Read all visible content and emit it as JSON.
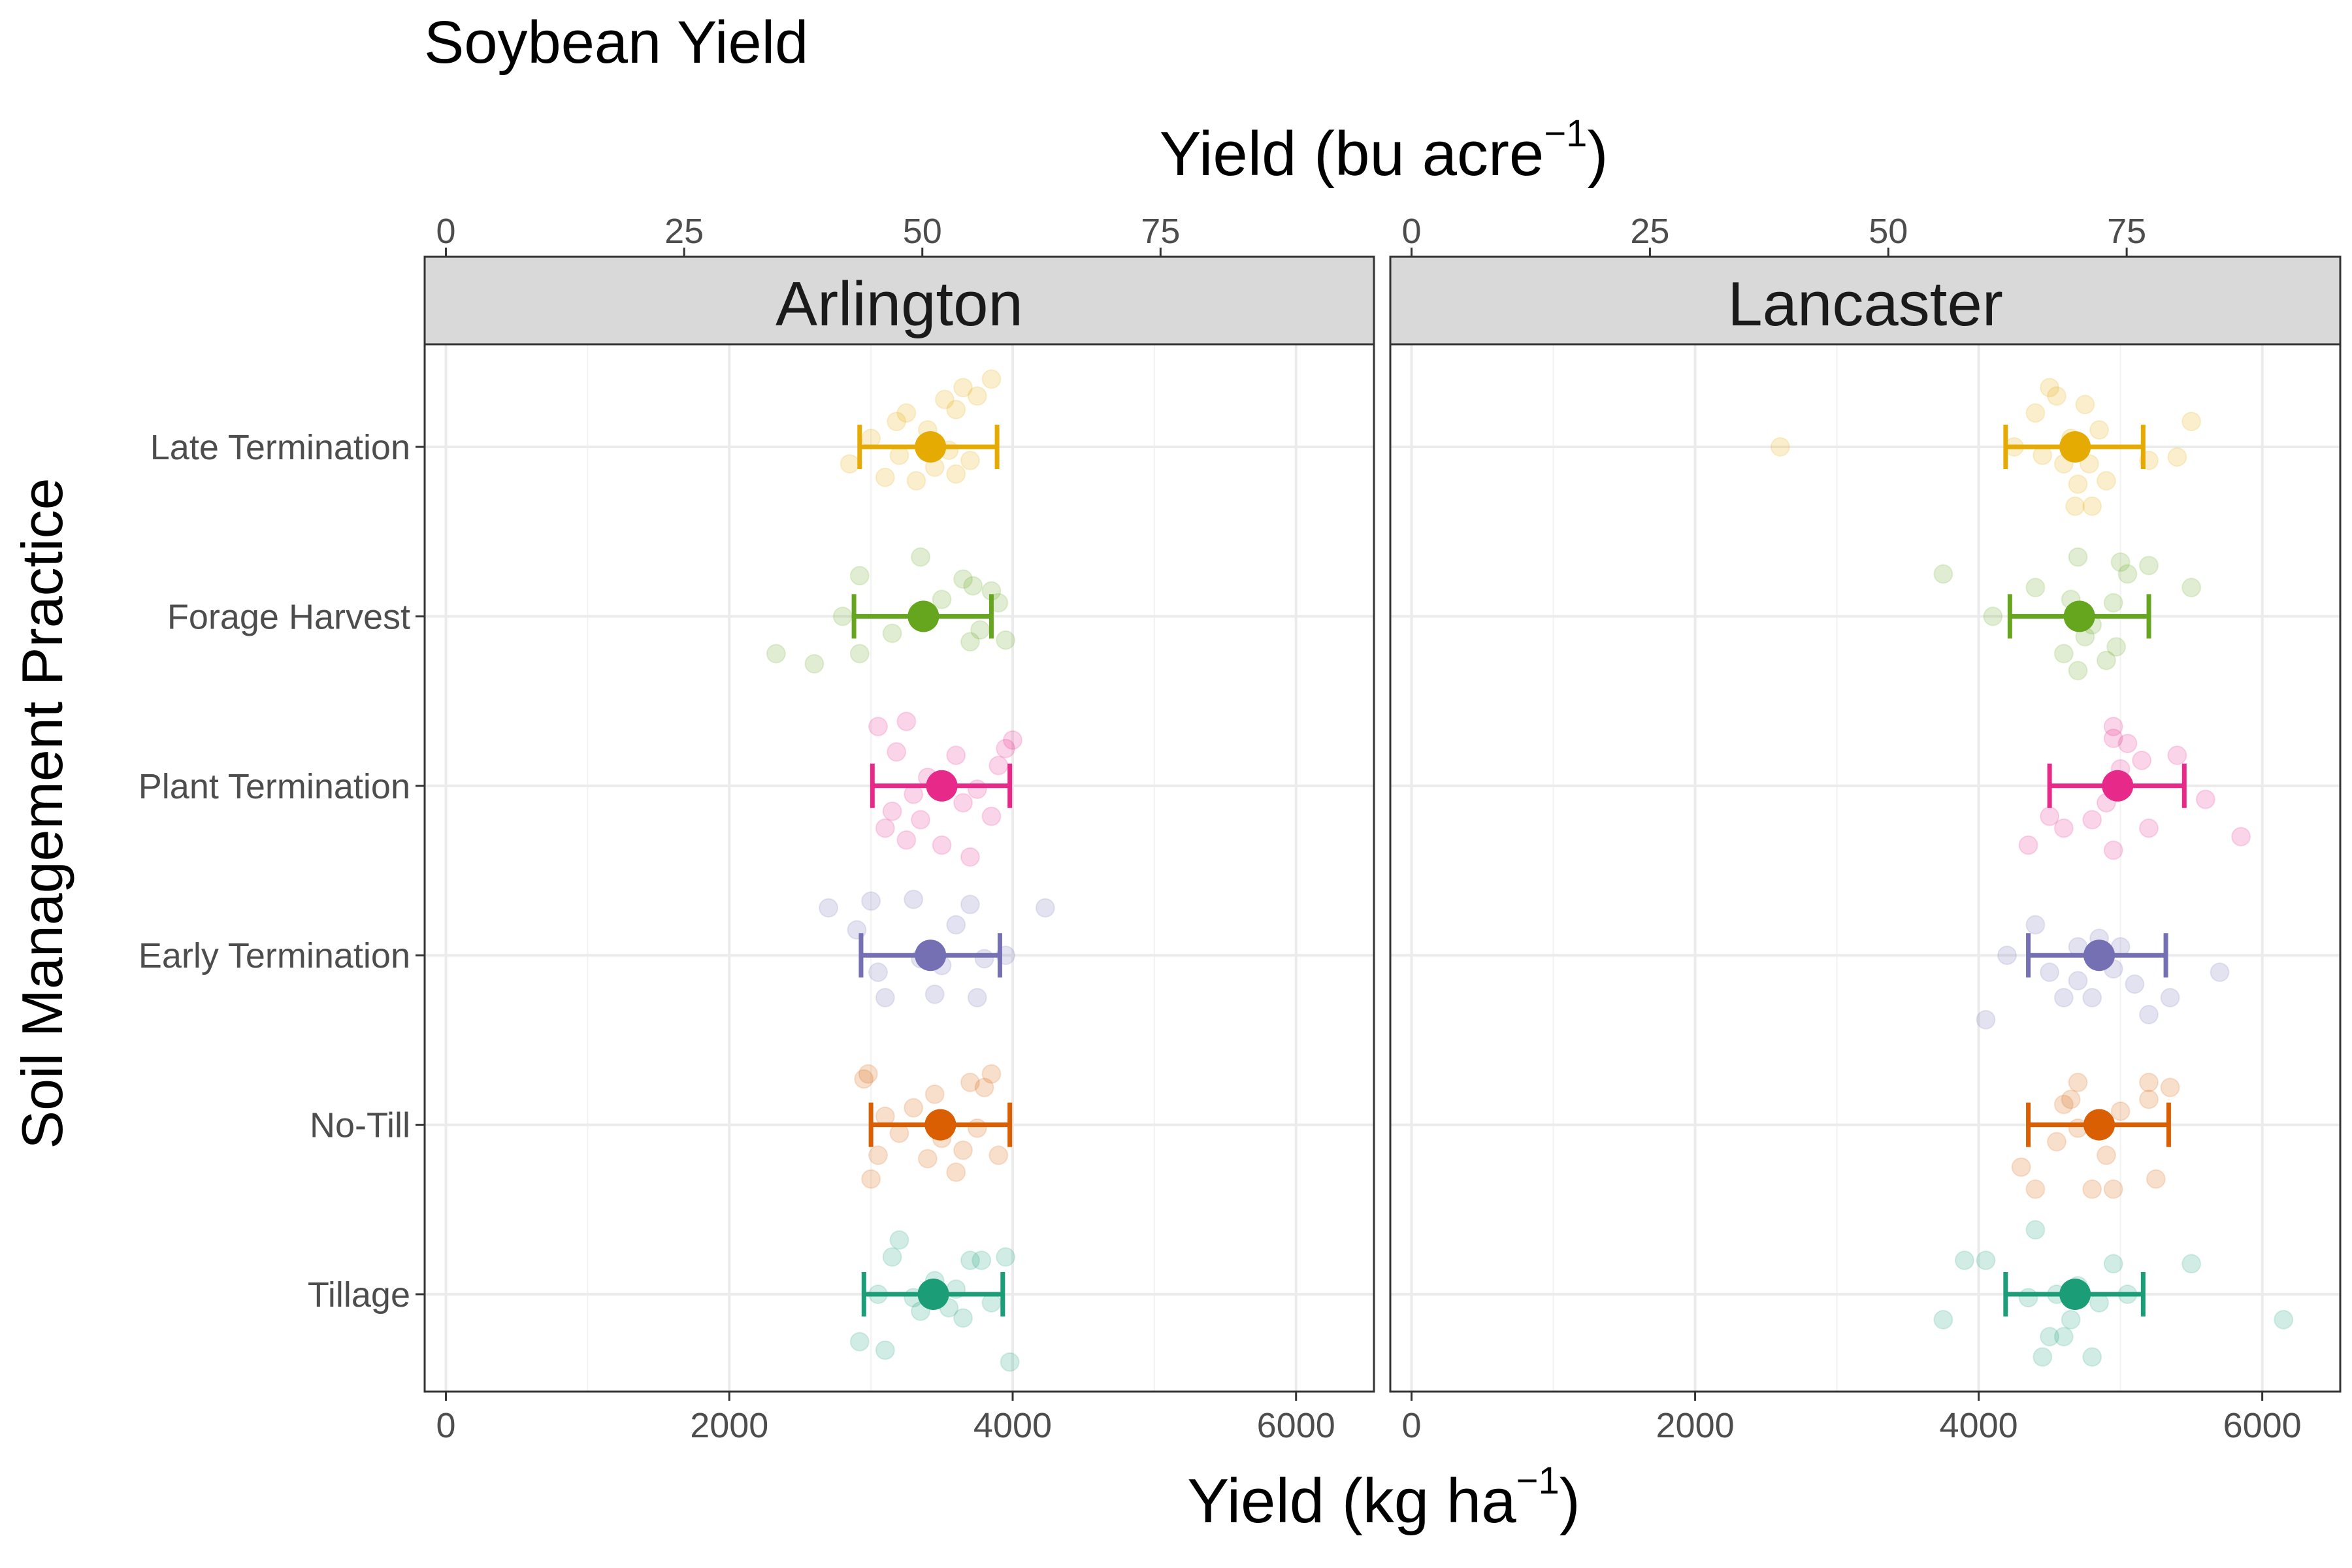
{
  "chart_data": {
    "type": "scatter",
    "title": "Soybean Yield",
    "xlabel_bottom": "Yield (kg ha",
    "xlabel_bottom_sup": "−1",
    "xlabel_bottom_close": ")",
    "xlabel_top": "Yield (bu acre",
    "xlabel_top_sup": "−1",
    "xlabel_top_close": ")",
    "ylabel": "Soil Management Practice",
    "xlim": [
      -150,
      6550
    ],
    "x_ticks": [
      0,
      2000,
      4000,
      6000
    ],
    "x_ticks_labels": [
      "0",
      "2000",
      "4000",
      "6000"
    ],
    "top_ticks": [
      0,
      25,
      50,
      75
    ],
    "top_ticks_labels": [
      "0",
      "25",
      "50",
      "75"
    ],
    "bu_per_kg": 0.0148699,
    "grid": true,
    "categories": [
      "Late Termination",
      "Forage Harvest",
      "Plant Termination",
      "Early Termination",
      "No-Till",
      "Tillage"
    ],
    "colors": {
      "Late Termination": "#E6AB02",
      "Forage Harvest": "#66A61E",
      "Plant Termination": "#E7298A",
      "Early Termination": "#7570B3",
      "No-Till": "#D95F02",
      "Tillage": "#1B9E77"
    },
    "panels": [
      {
        "site": "Arlington",
        "summary": [
          {
            "practice": "Late Termination",
            "mean": 3420,
            "lower": 2920,
            "upper": 3890
          },
          {
            "practice": "Forage Harvest",
            "mean": 3370,
            "lower": 2880,
            "upper": 3850
          },
          {
            "practice": "Plant Termination",
            "mean": 3500,
            "lower": 3010,
            "upper": 3980
          },
          {
            "practice": "Early Termination",
            "mean": 3420,
            "lower": 2930,
            "upper": 3910
          },
          {
            "practice": "No-Till",
            "mean": 3490,
            "lower": 3000,
            "upper": 3980
          },
          {
            "practice": "Tillage",
            "mean": 3440,
            "lower": 2950,
            "upper": 3930
          }
        ],
        "points": {
          "Late Termination": [
            [
              2850,
              0.1
            ],
            [
              3000,
              -0.05
            ],
            [
              3100,
              0.18
            ],
            [
              3200,
              0.05
            ],
            [
              3250,
              -0.2
            ],
            [
              3320,
              0.2
            ],
            [
              3400,
              -0.1
            ],
            [
              3450,
              0.12
            ],
            [
              3520,
              -0.28
            ],
            [
              3550,
              0.02
            ],
            [
              3600,
              0.16
            ],
            [
              3650,
              -0.35
            ],
            [
              3700,
              0.08
            ],
            [
              3750,
              -0.3
            ],
            [
              3850,
              -0.4
            ],
            [
              3180,
              -0.15
            ],
            [
              3600,
              -0.22
            ]
          ],
          "Forage Harvest": [
            [
              2330,
              0.22
            ],
            [
              2600,
              0.28
            ],
            [
              2800,
              0.0
            ],
            [
              2920,
              0.22
            ],
            [
              2920,
              -0.24
            ],
            [
              3150,
              0.1
            ],
            [
              3350,
              -0.35
            ],
            [
              3500,
              -0.1
            ],
            [
              3650,
              -0.22
            ],
            [
              3700,
              0.15
            ],
            [
              3720,
              -0.18
            ],
            [
              3770,
              0.08
            ],
            [
              3900,
              -0.08
            ],
            [
              3950,
              0.14
            ],
            [
              3850,
              -0.15
            ]
          ],
          "Plant Termination": [
            [
              3050,
              -0.35
            ],
            [
              3100,
              0.25
            ],
            [
              3150,
              0.15
            ],
            [
              3180,
              -0.2
            ],
            [
              3250,
              0.32
            ],
            [
              3300,
              0.05
            ],
            [
              3350,
              0.2
            ],
            [
              3400,
              -0.05
            ],
            [
              3500,
              0.35
            ],
            [
              3600,
              -0.18
            ],
            [
              3650,
              0.1
            ],
            [
              3700,
              0.42
            ],
            [
              3750,
              0.02
            ],
            [
              3850,
              0.18
            ],
            [
              3900,
              -0.12
            ],
            [
              3950,
              -0.22
            ],
            [
              4000,
              -0.27
            ],
            [
              3250,
              -0.38
            ]
          ],
          "Early Termination": [
            [
              2700,
              -0.28
            ],
            [
              2900,
              -0.15
            ],
            [
              3000,
              -0.32
            ],
            [
              3050,
              0.1
            ],
            [
              3100,
              0.25
            ],
            [
              3300,
              -0.33
            ],
            [
              3350,
              0.02
            ],
            [
              3450,
              0.23
            ],
            [
              3600,
              -0.18
            ],
            [
              3700,
              -0.3
            ],
            [
              3750,
              0.25
            ],
            [
              3800,
              0.02
            ],
            [
              3950,
              0.0
            ],
            [
              4230,
              -0.28
            ],
            [
              3500,
              0.06
            ]
          ],
          "No-Till": [
            [
              2950,
              -0.27
            ],
            [
              3000,
              0.32
            ],
            [
              3050,
              0.18
            ],
            [
              3100,
              -0.05
            ],
            [
              3200,
              0.05
            ],
            [
              3300,
              -0.1
            ],
            [
              3400,
              0.2
            ],
            [
              3450,
              -0.18
            ],
            [
              3500,
              0.08
            ],
            [
              3600,
              0.28
            ],
            [
              3650,
              0.15
            ],
            [
              3700,
              -0.25
            ],
            [
              3750,
              0.02
            ],
            [
              3850,
              -0.3
            ],
            [
              3900,
              0.18
            ],
            [
              2980,
              -0.3
            ],
            [
              3800,
              -0.22
            ]
          ],
          "Tillage": [
            [
              2920,
              0.28
            ],
            [
              3050,
              0.0
            ],
            [
              3100,
              0.33
            ],
            [
              3150,
              -0.22
            ],
            [
              3200,
              -0.32
            ],
            [
              3350,
              0.1
            ],
            [
              3450,
              -0.08
            ],
            [
              3550,
              0.08
            ],
            [
              3600,
              -0.03
            ],
            [
              3650,
              0.14
            ],
            [
              3700,
              -0.2
            ],
            [
              3780,
              -0.2
            ],
            [
              3850,
              0.05
            ],
            [
              3950,
              -0.22
            ],
            [
              3980,
              0.4
            ],
            [
              3300,
              0.02
            ]
          ]
        }
      },
      {
        "site": "Lancaster",
        "summary": [
          {
            "practice": "Late Termination",
            "mean": 4680,
            "lower": 4190,
            "upper": 5160
          },
          {
            "practice": "Forage Harvest",
            "mean": 4710,
            "lower": 4220,
            "upper": 5200
          },
          {
            "practice": "Plant Termination",
            "mean": 4980,
            "lower": 4500,
            "upper": 5450
          },
          {
            "practice": "Early Termination",
            "mean": 4850,
            "lower": 4350,
            "upper": 5320
          },
          {
            "practice": "No-Till",
            "mean": 4850,
            "lower": 4350,
            "upper": 5340
          },
          {
            "practice": "Tillage",
            "mean": 4680,
            "lower": 4190,
            "upper": 5160
          }
        ],
        "points": {
          "Late Termination": [
            [
              2600,
              0.0
            ],
            [
              4250,
              0.0
            ],
            [
              4400,
              -0.2
            ],
            [
              4450,
              0.05
            ],
            [
              4550,
              -0.3
            ],
            [
              4600,
              0.1
            ],
            [
              4650,
              -0.05
            ],
            [
              4700,
              0.22
            ],
            [
              4750,
              -0.25
            ],
            [
              4780,
              0.1
            ],
            [
              4800,
              0.35
            ],
            [
              4850,
              -0.1
            ],
            [
              4900,
              0.2
            ],
            [
              5200,
              0.08
            ],
            [
              5400,
              0.06
            ],
            [
              5500,
              -0.15
            ],
            [
              4500,
              -0.35
            ],
            [
              4680,
              0.35
            ]
          ],
          "Forage Harvest": [
            [
              3750,
              -0.25
            ],
            [
              4100,
              0.0
            ],
            [
              4400,
              -0.17
            ],
            [
              4600,
              0.22
            ],
            [
              4650,
              -0.1
            ],
            [
              4700,
              0.32
            ],
            [
              4750,
              0.12
            ],
            [
              4800,
              0.05
            ],
            [
              4900,
              0.26
            ],
            [
              4950,
              -0.08
            ],
            [
              4970,
              0.18
            ],
            [
              5050,
              -0.25
            ],
            [
              5200,
              -0.3
            ],
            [
              5500,
              -0.17
            ],
            [
              4700,
              -0.35
            ],
            [
              5000,
              -0.32
            ]
          ],
          "Plant Termination": [
            [
              4350,
              0.35
            ],
            [
              4500,
              0.18
            ],
            [
              4600,
              0.25
            ],
            [
              4800,
              0.2
            ],
            [
              4900,
              0.1
            ],
            [
              4950,
              0.38
            ],
            [
              5000,
              -0.1
            ],
            [
              5050,
              -0.25
            ],
            [
              5150,
              -0.15
            ],
            [
              5200,
              0.25
            ],
            [
              5400,
              -0.18
            ],
            [
              5600,
              0.08
            ],
            [
              5850,
              0.3
            ],
            [
              4950,
              -0.28
            ],
            [
              4950,
              -0.35
            ],
            [
              5000,
              0.0
            ]
          ],
          "Early Termination": [
            [
              4050,
              0.38
            ],
            [
              4200,
              0.0
            ],
            [
              4400,
              -0.18
            ],
            [
              4500,
              0.1
            ],
            [
              4600,
              0.25
            ],
            [
              4700,
              0.15
            ],
            [
              4800,
              0.25
            ],
            [
              4850,
              -0.1
            ],
            [
              5000,
              -0.05
            ],
            [
              5100,
              0.17
            ],
            [
              5200,
              0.35
            ],
            [
              5350,
              0.25
            ],
            [
              5700,
              0.1
            ],
            [
              4700,
              -0.05
            ],
            [
              4950,
              0.08
            ]
          ],
          "No-Till": [
            [
              4300,
              0.25
            ],
            [
              4400,
              0.38
            ],
            [
              4550,
              0.1
            ],
            [
              4600,
              -0.12
            ],
            [
              4650,
              -0.15
            ],
            [
              4700,
              -0.25
            ],
            [
              4800,
              0.38
            ],
            [
              4850,
              0.02
            ],
            [
              4900,
              0.18
            ],
            [
              4950,
              0.38
            ],
            [
              5000,
              -0.08
            ],
            [
              5200,
              -0.15
            ],
            [
              5250,
              0.32
            ],
            [
              5350,
              -0.22
            ],
            [
              5200,
              -0.25
            ],
            [
              4700,
              0.02
            ]
          ],
          "Tillage": [
            [
              3750,
              0.15
            ],
            [
              3900,
              -0.2
            ],
            [
              4050,
              -0.2
            ],
            [
              4400,
              -0.38
            ],
            [
              4450,
              0.37
            ],
            [
              4500,
              0.25
            ],
            [
              4550,
              0.0
            ],
            [
              4600,
              0.25
            ],
            [
              4650,
              0.15
            ],
            [
              4700,
              -0.05
            ],
            [
              4800,
              0.37
            ],
            [
              4850,
              0.05
            ],
            [
              4950,
              -0.18
            ],
            [
              5050,
              0.0
            ],
            [
              5500,
              -0.18
            ],
            [
              6150,
              0.15
            ],
            [
              4350,
              0.02
            ]
          ]
        }
      }
    ]
  }
}
